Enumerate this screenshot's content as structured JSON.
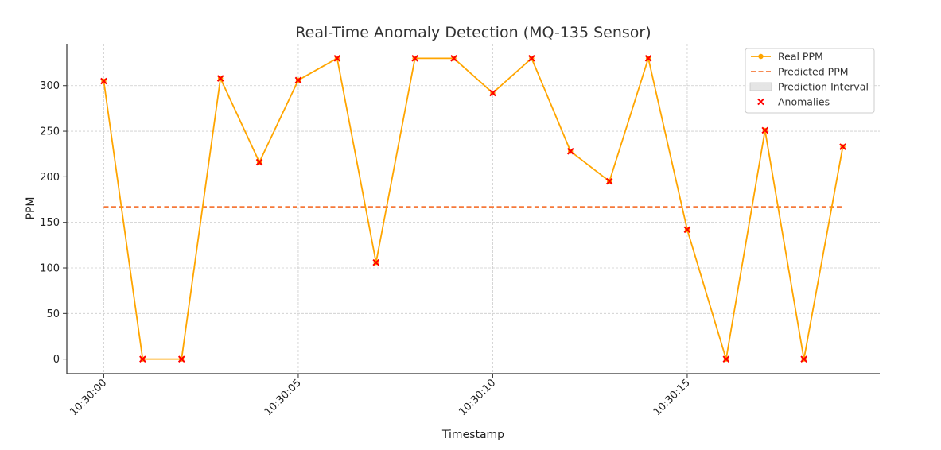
{
  "chart_data": {
    "type": "line",
    "title": "Real-Time Anomaly Detection (MQ-135 Sensor)",
    "xlabel": "Timestamp",
    "ylabel": "PPM",
    "x": [
      "10:30:00",
      "10:30:01",
      "10:30:02",
      "10:30:03",
      "10:30:04",
      "10:30:05",
      "10:30:06",
      "10:30:07",
      "10:30:08",
      "10:30:09",
      "10:30:10",
      "10:30:11",
      "10:30:12",
      "10:30:13",
      "10:30:14",
      "10:30:15",
      "10:30:16",
      "10:30:17",
      "10:30:18",
      "10:30:19"
    ],
    "x_ticks": [
      "10:30:00",
      "10:30:05",
      "10:30:10",
      "10:30:15"
    ],
    "y_ticks": [
      0,
      50,
      100,
      150,
      200,
      250,
      300
    ],
    "ylim": [
      -16,
      346
    ],
    "xlim": [
      -0.95,
      19.95
    ],
    "grid": true,
    "legend_position": "top-right",
    "series": [
      {
        "name": "Real PPM",
        "style": "line",
        "color": "#ffa500",
        "values": [
          305,
          0,
          0,
          308,
          216,
          306,
          330,
          106,
          330,
          330,
          292,
          330,
          228,
          195,
          330,
          142,
          0,
          251,
          0,
          233
        ]
      },
      {
        "name": "Predicted PPM",
        "style": "dashed-line",
        "color": "#f5793a",
        "values": [
          167,
          167,
          167,
          167,
          167,
          167,
          167,
          167,
          167,
          167,
          167,
          167,
          167,
          167,
          167,
          167,
          167,
          167,
          167,
          167
        ]
      },
      {
        "name": "Prediction Interval",
        "style": "band",
        "color": "#d3d3d3"
      },
      {
        "name": "Anomalies",
        "style": "x-markers",
        "color": "#ff0000",
        "values": [
          305,
          0,
          0,
          308,
          216,
          306,
          330,
          106,
          330,
          330,
          292,
          330,
          228,
          195,
          330,
          142,
          0,
          251,
          0,
          233
        ]
      }
    ]
  }
}
